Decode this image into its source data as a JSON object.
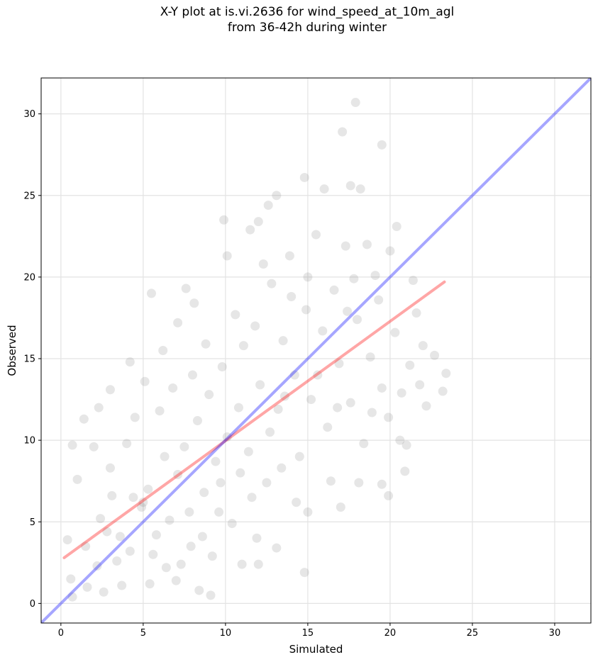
{
  "chart_data": {
    "type": "scatter",
    "title_lines": [
      "X-Y plot at is.vi.2636 for wind_speed_at_10m_agl",
      "from 36-42h during winter"
    ],
    "xlabel": "Simulated",
    "ylabel": "Observed",
    "xlim": [
      -1.2,
      32.2
    ],
    "ylim": [
      -1.2,
      32.2
    ],
    "xticks": [
      0,
      5,
      10,
      15,
      20,
      25,
      30
    ],
    "yticks": [
      0,
      5,
      10,
      15,
      20,
      25,
      30
    ],
    "grid": true,
    "point_color": "#808080",
    "point_opacity": 0.2,
    "sample_points": [
      [
        0.4,
        3.9
      ],
      [
        0.7,
        9.7
      ],
      [
        1.0,
        7.6
      ],
      [
        1.4,
        11.3
      ],
      [
        2.0,
        9.6
      ],
      [
        2.3,
        12.0
      ],
      [
        3.0,
        13.1
      ],
      [
        4.2,
        14.8
      ],
      [
        5.1,
        13.6
      ],
      [
        5.5,
        19.0
      ],
      [
        6.2,
        15.5
      ],
      [
        7.1,
        17.2
      ],
      [
        7.6,
        19.3
      ],
      [
        8.1,
        18.4
      ],
      [
        9.9,
        23.5
      ],
      [
        10.1,
        21.3
      ],
      [
        11.5,
        22.9
      ],
      [
        12.0,
        23.4
      ],
      [
        12.6,
        24.4
      ],
      [
        13.1,
        25.0
      ],
      [
        14.8,
        26.1
      ],
      [
        16.0,
        25.4
      ],
      [
        17.1,
        28.9
      ],
      [
        17.9,
        30.7
      ],
      [
        17.6,
        25.6
      ],
      [
        18.2,
        25.4
      ],
      [
        19.5,
        28.1
      ],
      [
        20.4,
        23.1
      ],
      [
        20.0,
        21.6
      ],
      [
        21.4,
        19.8
      ],
      [
        22.7,
        15.2
      ],
      [
        23.2,
        13.0
      ],
      [
        23.4,
        14.1
      ],
      [
        22.2,
        12.1
      ],
      [
        21.0,
        9.7
      ],
      [
        20.9,
        8.1
      ],
      [
        19.5,
        7.3
      ],
      [
        19.9,
        6.6
      ],
      [
        18.1,
        7.4
      ],
      [
        17.0,
        5.9
      ],
      [
        15.0,
        5.6
      ],
      [
        14.8,
        1.9
      ],
      [
        13.1,
        3.4
      ],
      [
        12.0,
        2.4
      ],
      [
        11.0,
        2.4
      ],
      [
        9.1,
        0.5
      ],
      [
        8.4,
        0.8
      ],
      [
        7.0,
        1.4
      ],
      [
        5.4,
        1.2
      ],
      [
        3.7,
        1.1
      ],
      [
        2.6,
        0.7
      ],
      [
        1.6,
        1.0
      ],
      [
        0.7,
        0.4
      ],
      [
        0.6,
        1.5
      ],
      [
        1.5,
        3.5
      ],
      [
        2.4,
        5.2
      ],
      [
        3.1,
        6.6
      ],
      [
        3.6,
        4.1
      ],
      [
        4.2,
        3.2
      ],
      [
        4.9,
        5.9
      ],
      [
        5.3,
        7.0
      ],
      [
        5.8,
        4.2
      ],
      [
        6.3,
        9.0
      ],
      [
        6.6,
        5.1
      ],
      [
        7.1,
        7.9
      ],
      [
        7.5,
        9.6
      ],
      [
        7.9,
        3.5
      ],
      [
        8.3,
        11.2
      ],
      [
        8.7,
        6.8
      ],
      [
        9.0,
        12.8
      ],
      [
        9.4,
        8.7
      ],
      [
        9.8,
        14.5
      ],
      [
        10.1,
        10.2
      ],
      [
        10.4,
        4.9
      ],
      [
        10.8,
        12.0
      ],
      [
        11.1,
        15.8
      ],
      [
        11.4,
        9.3
      ],
      [
        11.8,
        17.0
      ],
      [
        12.1,
        13.4
      ],
      [
        12.5,
        7.4
      ],
      [
        12.8,
        19.6
      ],
      [
        13.2,
        11.9
      ],
      [
        13.5,
        16.1
      ],
      [
        13.9,
        21.3
      ],
      [
        14.2,
        14.0
      ],
      [
        14.5,
        9.0
      ],
      [
        14.9,
        18.0
      ],
      [
        15.2,
        12.5
      ],
      [
        15.5,
        22.6
      ],
      [
        15.9,
        16.7
      ],
      [
        16.2,
        10.8
      ],
      [
        16.6,
        19.2
      ],
      [
        16.9,
        14.7
      ],
      [
        17.3,
        21.9
      ],
      [
        17.6,
        12.3
      ],
      [
        18.0,
        17.4
      ],
      [
        18.4,
        9.8
      ],
      [
        18.8,
        15.1
      ],
      [
        19.1,
        20.1
      ],
      [
        19.5,
        13.2
      ],
      [
        19.9,
        11.4
      ],
      [
        20.3,
        16.6
      ],
      [
        20.7,
        12.9
      ],
      [
        21.2,
        14.6
      ],
      [
        21.6,
        17.8
      ],
      [
        22.0,
        15.8
      ],
      [
        3.0,
        8.3
      ],
      [
        4.0,
        9.8
      ],
      [
        4.5,
        11.4
      ],
      [
        5.0,
        6.2
      ],
      [
        6.0,
        11.8
      ],
      [
        6.8,
        13.2
      ],
      [
        7.3,
        2.4
      ],
      [
        8.0,
        14.0
      ],
      [
        8.8,
        15.9
      ],
      [
        9.6,
        5.6
      ],
      [
        10.6,
        17.7
      ],
      [
        11.6,
        6.5
      ],
      [
        12.3,
        20.8
      ],
      [
        13.4,
        8.3
      ],
      [
        14.0,
        18.8
      ],
      [
        15.0,
        20.0
      ],
      [
        16.4,
        7.5
      ],
      [
        17.4,
        17.9
      ],
      [
        18.6,
        22.0
      ],
      [
        19.3,
        18.6
      ],
      [
        2.2,
        2.3
      ],
      [
        2.8,
        4.4
      ],
      [
        3.4,
        2.6
      ],
      [
        4.4,
        6.5
      ],
      [
        5.6,
        3.0
      ],
      [
        6.4,
        2.2
      ],
      [
        7.8,
        5.6
      ],
      [
        8.6,
        4.1
      ],
      [
        9.2,
        2.9
      ],
      [
        9.7,
        7.4
      ],
      [
        10.9,
        8.0
      ],
      [
        11.9,
        4.0
      ],
      [
        12.7,
        10.5
      ],
      [
        13.6,
        12.7
      ],
      [
        14.3,
        6.2
      ],
      [
        15.6,
        14.0
      ],
      [
        16.8,
        12.0
      ],
      [
        17.8,
        19.9
      ],
      [
        18.9,
        11.7
      ],
      [
        20.6,
        10.0
      ],
      [
        21.8,
        13.4
      ]
    ],
    "series": [
      {
        "style": "thick translucent line",
        "color": "#ff0000",
        "opacity": 0.35,
        "x": [
          0.2,
          23.3
        ],
        "y": [
          2.8,
          19.7
        ]
      },
      {
        "style": "thick translucent line",
        "color": "#0000ff",
        "opacity": 0.35,
        "x": [
          -1.2,
          32.2
        ],
        "y": [
          -1.2,
          32.2
        ]
      }
    ]
  }
}
